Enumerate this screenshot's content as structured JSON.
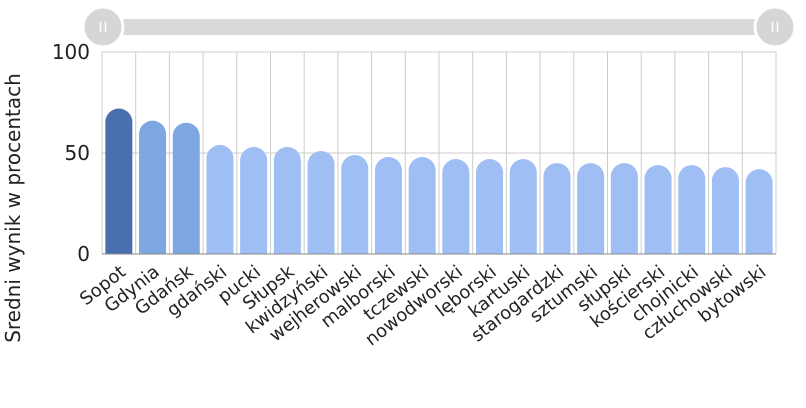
{
  "chart_data": {
    "type": "bar",
    "title": "",
    "xlabel": "",
    "ylabel": "Sredni wynik w procentach",
    "ylim": [
      0,
      100
    ],
    "yticks": [
      0,
      50,
      100
    ],
    "grid": true,
    "categories": [
      "Sopot",
      "Gdynia",
      "Gdańsk",
      "gdański",
      "pucki",
      "Słupsk",
      "kwidzyński",
      "wejherowski",
      "malborski",
      "tczewski",
      "nowodworski",
      "lęborski",
      "kartuski",
      "starogardzki",
      "sztumski",
      "słupski",
      "kościerski",
      "chojnicki",
      "człuchowski",
      "bytowski"
    ],
    "values": [
      72,
      66,
      65,
      54,
      53,
      53,
      51,
      49,
      48,
      48,
      47,
      47,
      47,
      45,
      45,
      45,
      44,
      44,
      43,
      42
    ],
    "colors": {
      "rank1": "#4a6fae",
      "rank2_3": "#7ea6e0",
      "rest": "#9ebef4",
      "grid": "#cccccc",
      "scrollbar": "#d9d9d9"
    }
  }
}
